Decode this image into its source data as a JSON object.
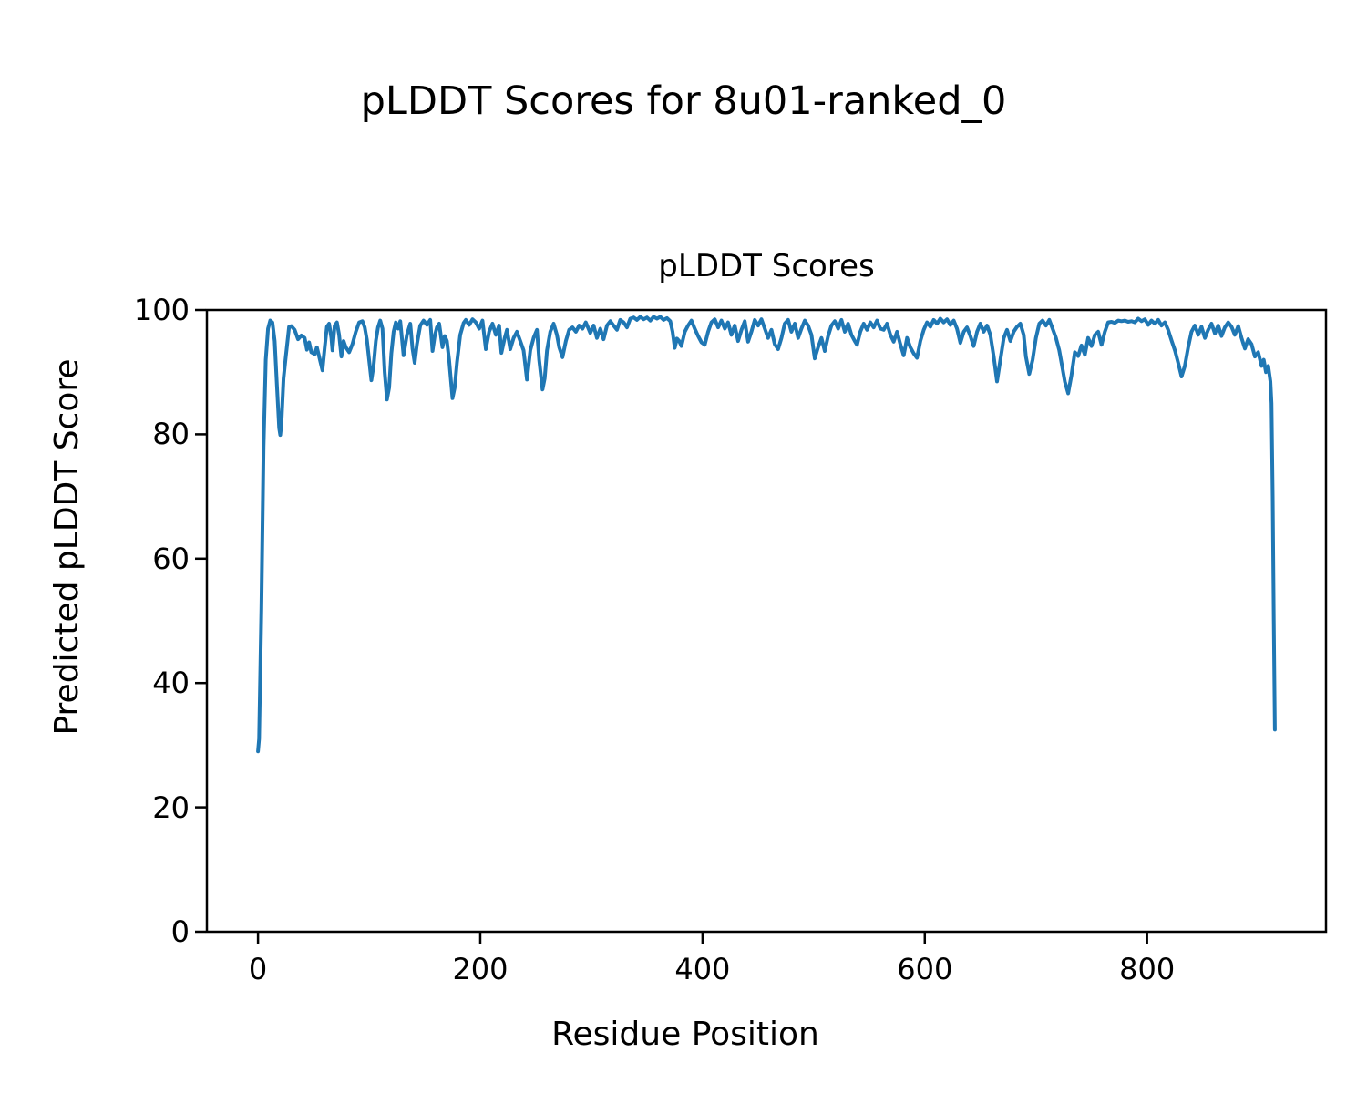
{
  "figure_title": "pLDDT Scores for 8u01-ranked_0",
  "chart_data": {
    "type": "line",
    "title": "pLDDT Scores",
    "xlabel": "Residue Position",
    "ylabel": "Predicted pLDDT Score",
    "xticks": [
      0,
      200,
      400,
      600,
      800
    ],
    "yticks": [
      0,
      20,
      40,
      60,
      80,
      100
    ],
    "xlim": [
      -46,
      961
    ],
    "ylim": [
      0,
      100
    ],
    "grid": false,
    "legend": "none",
    "line_color": "#1f77b4",
    "series_name": "pLDDT",
    "points": [
      [
        0,
        29
      ],
      [
        1,
        31
      ],
      [
        3,
        52
      ],
      [
        5,
        78
      ],
      [
        7,
        92
      ],
      [
        9,
        97
      ],
      [
        11,
        98.3
      ],
      [
        13,
        98
      ],
      [
        15,
        95
      ],
      [
        17,
        88
      ],
      [
        19,
        81
      ],
      [
        20,
        79.9
      ],
      [
        21,
        81.5
      ],
      [
        23,
        89
      ],
      [
        25,
        92.5
      ],
      [
        28,
        97.3
      ],
      [
        30,
        97.4
      ],
      [
        33,
        96.8
      ],
      [
        36,
        95.3
      ],
      [
        39,
        95.9
      ],
      [
        42,
        95.5
      ],
      [
        44,
        93.6
      ],
      [
        46,
        94.8
      ],
      [
        48,
        93.2
      ],
      [
        51,
        92.9
      ],
      [
        53,
        94
      ],
      [
        55,
        92.5
      ],
      [
        58,
        90.3
      ],
      [
        60,
        94
      ],
      [
        62,
        97.3
      ],
      [
        64,
        97.8
      ],
      [
        66,
        95.5
      ],
      [
        67,
        93.5
      ],
      [
        69,
        97.5
      ],
      [
        71,
        98
      ],
      [
        73,
        96
      ],
      [
        75,
        92.5
      ],
      [
        77,
        95
      ],
      [
        79,
        94
      ],
      [
        82,
        93.2
      ],
      [
        85,
        94.5
      ],
      [
        88,
        96.5
      ],
      [
        91,
        98
      ],
      [
        94,
        98.2
      ],
      [
        96,
        97.2
      ],
      [
        98,
        95.2
      ],
      [
        100,
        92
      ],
      [
        102,
        88.7
      ],
      [
        104,
        91
      ],
      [
        106,
        95
      ],
      [
        108,
        97.2
      ],
      [
        110,
        98.3
      ],
      [
        112,
        97
      ],
      [
        114,
        90
      ],
      [
        116,
        85.6
      ],
      [
        118,
        87.5
      ],
      [
        120,
        93
      ],
      [
        122,
        96.5
      ],
      [
        124,
        98
      ],
      [
        126,
        97
      ],
      [
        128,
        98.2
      ],
      [
        131,
        92.7
      ],
      [
        134,
        96
      ],
      [
        137,
        97.8
      ],
      [
        139,
        93.8
      ],
      [
        141,
        91.5
      ],
      [
        143,
        94.5
      ],
      [
        146,
        97.5
      ],
      [
        149,
        98.3
      ],
      [
        152,
        97.6
      ],
      [
        155,
        98.4
      ],
      [
        157,
        93.4
      ],
      [
        159,
        95.8
      ],
      [
        161,
        97.2
      ],
      [
        163,
        97.8
      ],
      [
        166,
        94
      ],
      [
        168,
        95.8
      ],
      [
        170,
        95
      ],
      [
        172,
        92
      ],
      [
        175,
        85.8
      ],
      [
        177,
        87.5
      ],
      [
        179,
        91.5
      ],
      [
        182,
        96
      ],
      [
        185,
        97.9
      ],
      [
        187,
        98.4
      ],
      [
        190,
        97.6
      ],
      [
        193,
        98.5
      ],
      [
        196,
        98
      ],
      [
        199,
        97
      ],
      [
        202,
        98.3
      ],
      [
        205,
        93.7
      ],
      [
        208,
        96.5
      ],
      [
        211,
        97.8
      ],
      [
        214,
        96
      ],
      [
        217,
        97.5
      ],
      [
        219,
        93.1
      ],
      [
        222,
        95.5
      ],
      [
        224,
        96.8
      ],
      [
        227,
        93.7
      ],
      [
        230,
        95.5
      ],
      [
        233,
        96.5
      ],
      [
        236,
        95
      ],
      [
        239,
        93.5
      ],
      [
        242,
        88.8
      ],
      [
        245,
        93.5
      ],
      [
        248,
        95.5
      ],
      [
        251,
        96.8
      ],
      [
        253,
        92
      ],
      [
        256,
        87.2
      ],
      [
        258,
        89
      ],
      [
        260,
        93.5
      ],
      [
        263,
        96.5
      ],
      [
        266,
        97.8
      ],
      [
        269,
        96
      ],
      [
        271,
        94
      ],
      [
        274,
        92.4
      ],
      [
        277,
        95
      ],
      [
        280,
        96.8
      ],
      [
        283,
        97.2
      ],
      [
        286,
        96.5
      ],
      [
        289,
        97.5
      ],
      [
        292,
        97
      ],
      [
        295,
        98
      ],
      [
        299,
        96.3
      ],
      [
        302,
        97.5
      ],
      [
        305,
        95.5
      ],
      [
        308,
        97
      ],
      [
        311,
        95.3
      ],
      [
        314,
        97.5
      ],
      [
        317,
        98.2
      ],
      [
        320,
        97.5
      ],
      [
        323,
        96.8
      ],
      [
        326,
        98.4
      ],
      [
        329,
        98
      ],
      [
        332,
        97.2
      ],
      [
        335,
        98.6
      ],
      [
        338,
        98.8
      ],
      [
        341,
        98.4
      ],
      [
        344,
        98.9
      ],
      [
        347,
        98.5
      ],
      [
        350,
        98.8
      ],
      [
        353,
        98.3
      ],
      [
        356,
        98.9
      ],
      [
        359,
        98.6
      ],
      [
        362,
        98.9
      ],
      [
        365,
        98.4
      ],
      [
        368,
        98.7
      ],
      [
        371,
        98.2
      ],
      [
        373,
        96.5
      ],
      [
        375,
        93.9
      ],
      [
        377,
        95.4
      ],
      [
        379,
        95
      ],
      [
        381,
        94.2
      ],
      [
        384,
        96.5
      ],
      [
        387,
        97.5
      ],
      [
        390,
        98.3
      ],
      [
        393,
        97
      ],
      [
        396,
        95.8
      ],
      [
        399,
        94.8
      ],
      [
        402,
        94.4
      ],
      [
        405,
        96.5
      ],
      [
        408,
        98
      ],
      [
        411,
        98.5
      ],
      [
        414,
        97.2
      ],
      [
        417,
        98.3
      ],
      [
        420,
        97
      ],
      [
        423,
        98
      ],
      [
        426,
        96
      ],
      [
        429,
        97.5
      ],
      [
        432,
        95
      ],
      [
        435,
        96.8
      ],
      [
        438,
        98.2
      ],
      [
        441,
        94.9
      ],
      [
        444,
        96.5
      ],
      [
        447,
        98.4
      ],
      [
        450,
        97.5
      ],
      [
        453,
        98.5
      ],
      [
        456,
        97
      ],
      [
        459,
        95.5
      ],
      [
        462,
        96.8
      ],
      [
        465,
        94.5
      ],
      [
        468,
        93.7
      ],
      [
        471,
        95.5
      ],
      [
        474,
        97.8
      ],
      [
        477,
        98.4
      ],
      [
        480,
        96.5
      ],
      [
        483,
        97.8
      ],
      [
        486,
        95.5
      ],
      [
        489,
        97
      ],
      [
        492,
        98.3
      ],
      [
        495,
        97.5
      ],
      [
        498,
        96
      ],
      [
        501,
        92.2
      ],
      [
        504,
        94
      ],
      [
        507,
        95.5
      ],
      [
        510,
        93.4
      ],
      [
        513,
        95.8
      ],
      [
        516,
        97.5
      ],
      [
        519,
        98.2
      ],
      [
        522,
        97
      ],
      [
        525,
        98.4
      ],
      [
        528,
        96.5
      ],
      [
        531,
        97.8
      ],
      [
        534,
        96
      ],
      [
        537,
        95
      ],
      [
        539,
        94.4
      ],
      [
        542,
        96.5
      ],
      [
        545,
        97.8
      ],
      [
        548,
        96.8
      ],
      [
        551,
        98
      ],
      [
        554,
        97.2
      ],
      [
        557,
        98.3
      ],
      [
        560,
        97
      ],
      [
        563,
        96.8
      ],
      [
        566,
        97.8
      ],
      [
        569,
        96
      ],
      [
        572,
        94.9
      ],
      [
        575,
        96.5
      ],
      [
        578,
        94.5
      ],
      [
        581,
        92.7
      ],
      [
        584,
        95.5
      ],
      [
        587,
        94
      ],
      [
        590,
        93
      ],
      [
        593,
        92.3
      ],
      [
        596,
        95
      ],
      [
        599,
        96.8
      ],
      [
        602,
        98
      ],
      [
        605,
        97.3
      ],
      [
        608,
        98.4
      ],
      [
        611,
        97.8
      ],
      [
        614,
        98.6
      ],
      [
        617,
        98
      ],
      [
        620,
        98.5
      ],
      [
        623,
        97.6
      ],
      [
        626,
        98.3
      ],
      [
        629,
        97
      ],
      [
        632,
        94.7
      ],
      [
        635,
        96.5
      ],
      [
        638,
        97.2
      ],
      [
        641,
        95.8
      ],
      [
        644,
        94.2
      ],
      [
        647,
        96.5
      ],
      [
        650,
        97.8
      ],
      [
        653,
        96.5
      ],
      [
        656,
        97.5
      ],
      [
        659,
        96
      ],
      [
        662,
        92.5
      ],
      [
        665,
        88.5
      ],
      [
        668,
        92
      ],
      [
        671,
        95.5
      ],
      [
        674,
        96.8
      ],
      [
        677,
        95
      ],
      [
        680,
        96.5
      ],
      [
        683,
        97.3
      ],
      [
        686,
        97.8
      ],
      [
        689,
        96
      ],
      [
        691,
        92.5
      ],
      [
        694,
        89.7
      ],
      [
        697,
        92
      ],
      [
        700,
        95.5
      ],
      [
        703,
        97.8
      ],
      [
        706,
        98.3
      ],
      [
        709,
        97.5
      ],
      [
        712,
        98.4
      ],
      [
        715,
        97
      ],
      [
        718,
        95.5
      ],
      [
        721,
        93.5
      ],
      [
        724,
        90.5
      ],
      [
        726,
        88.5
      ],
      [
        729,
        86.6
      ],
      [
        732,
        89.5
      ],
      [
        735,
        93.2
      ],
      [
        738,
        92.6
      ],
      [
        741,
        94.3
      ],
      [
        744,
        92.8
      ],
      [
        747,
        95.5
      ],
      [
        750,
        94.2
      ],
      [
        753,
        96
      ],
      [
        756,
        96.5
      ],
      [
        759,
        94.4
      ],
      [
        762,
        96.5
      ],
      [
        765,
        98
      ],
      [
        768,
        98.1
      ],
      [
        771,
        97.9
      ],
      [
        774,
        98.3
      ],
      [
        777,
        98.2
      ],
      [
        780,
        98.3
      ],
      [
        783,
        98.1
      ],
      [
        786,
        98.2
      ],
      [
        789,
        98
      ],
      [
        792,
        98.6
      ],
      [
        795,
        98.2
      ],
      [
        798,
        98.5
      ],
      [
        801,
        97.6
      ],
      [
        804,
        98.3
      ],
      [
        807,
        97.8
      ],
      [
        810,
        98.4
      ],
      [
        813,
        97.5
      ],
      [
        816,
        98
      ],
      [
        819,
        96.8
      ],
      [
        822,
        95.1
      ],
      [
        825,
        93.5
      ],
      [
        828,
        91.5
      ],
      [
        831,
        89.3
      ],
      [
        834,
        91
      ],
      [
        837,
        94
      ],
      [
        840,
        96.5
      ],
      [
        843,
        97.5
      ],
      [
        846,
        96
      ],
      [
        849,
        97.3
      ],
      [
        852,
        95.5
      ],
      [
        855,
        96.8
      ],
      [
        858,
        97.8
      ],
      [
        861,
        96.2
      ],
      [
        864,
        97.5
      ],
      [
        867,
        95.8
      ],
      [
        870,
        97.2
      ],
      [
        873,
        98
      ],
      [
        876,
        97.3
      ],
      [
        879,
        96
      ],
      [
        882,
        97.4
      ],
      [
        885,
        95.5
      ],
      [
        888,
        93.8
      ],
      [
        891,
        95.3
      ],
      [
        894,
        94.5
      ],
      [
        897,
        92.5
      ],
      [
        900,
        93.2
      ],
      [
        903,
        91
      ],
      [
        905,
        92
      ],
      [
        907,
        90
      ],
      [
        909,
        91
      ],
      [
        911,
        88.5
      ],
      [
        912,
        85
      ],
      [
        913,
        70
      ],
      [
        914,
        50
      ],
      [
        915,
        32.5
      ]
    ]
  }
}
